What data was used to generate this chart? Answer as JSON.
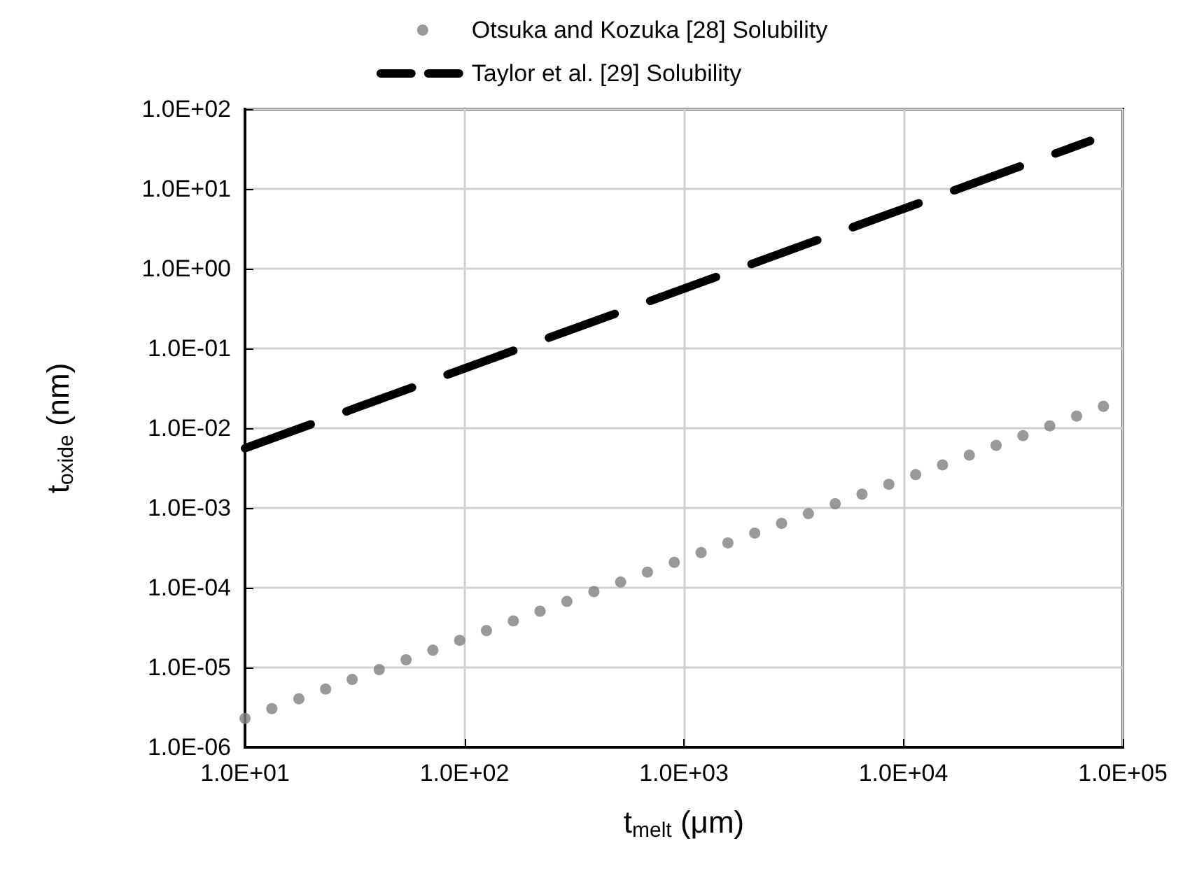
{
  "chart_data": {
    "type": "line",
    "xlabel": "t$_{melt}$ (μm)",
    "ylabel": "t$_{oxide}$ (nm)",
    "log": "xy",
    "grid": true,
    "legend": "top",
    "xlim": [
      10,
      100000
    ],
    "ylim": [
      1e-06,
      100
    ],
    "xticks": [
      {
        "value": 10,
        "label": "1.0E+01"
      },
      {
        "value": 100,
        "label": "1.0E+02"
      },
      {
        "value": 1000,
        "label": "1.0E+03"
      },
      {
        "value": 10000,
        "label": "1.0E+04"
      },
      {
        "value": 100000,
        "label": "1.0E+05"
      }
    ],
    "yticks": [
      {
        "value": 1e-06,
        "label": "1.0E-06"
      },
      {
        "value": 1e-05,
        "label": "1.0E-05"
      },
      {
        "value": 0.0001,
        "label": "1.0E-04"
      },
      {
        "value": 0.001,
        "label": "1.0E-03"
      },
      {
        "value": 0.01,
        "label": "1.0E-02"
      },
      {
        "value": 0.1,
        "label": "1.0E-01"
      },
      {
        "value": 1,
        "label": "1.0E+00"
      },
      {
        "value": 10,
        "label": "1.0E+01"
      },
      {
        "value": 100,
        "label": "1.0E+02"
      }
    ],
    "series": [
      {
        "name": "Otsuka and Kozuka [28] Solubility",
        "type": "scatter",
        "marker": "circle",
        "color": "#808080",
        "x": [
          10,
          13.25,
          17.6,
          23.3,
          30.8,
          40.9,
          54.2,
          71.8,
          95.1,
          126,
          167,
          221,
          293,
          389,
          515,
          682,
          904,
          1198,
          1587,
          2103,
          2787,
          3692,
          4892,
          6482,
          8589,
          11380,
          15080,
          19980,
          26470,
          35080,
          46480,
          61580,
          81600
        ],
        "values": [
          2.3e-06,
          3.05e-06,
          4.05e-06,
          5.36e-06,
          7.08e-06,
          9.41e-06,
          1.25e-05,
          1.65e-05,
          2.19e-05,
          2.9e-05,
          3.84e-05,
          5.08e-05,
          6.74e-05,
          8.95e-05,
          0.000118,
          0.000157,
          0.000208,
          0.000276,
          0.000365,
          0.000484,
          0.000641,
          0.000849,
          0.00113,
          0.00149,
          0.00198,
          0.00262,
          0.00347,
          0.0046,
          0.00609,
          0.00807,
          0.0107,
          0.0142,
          0.0188
        ]
      },
      {
        "name": "Taylor et al. [29] Solubility",
        "marker": "none",
        "line_style": "dashed",
        "color": "#000000",
        "x": [
          10,
          71000
        ],
        "values": [
          0.0056,
          40
        ]
      }
    ]
  }
}
